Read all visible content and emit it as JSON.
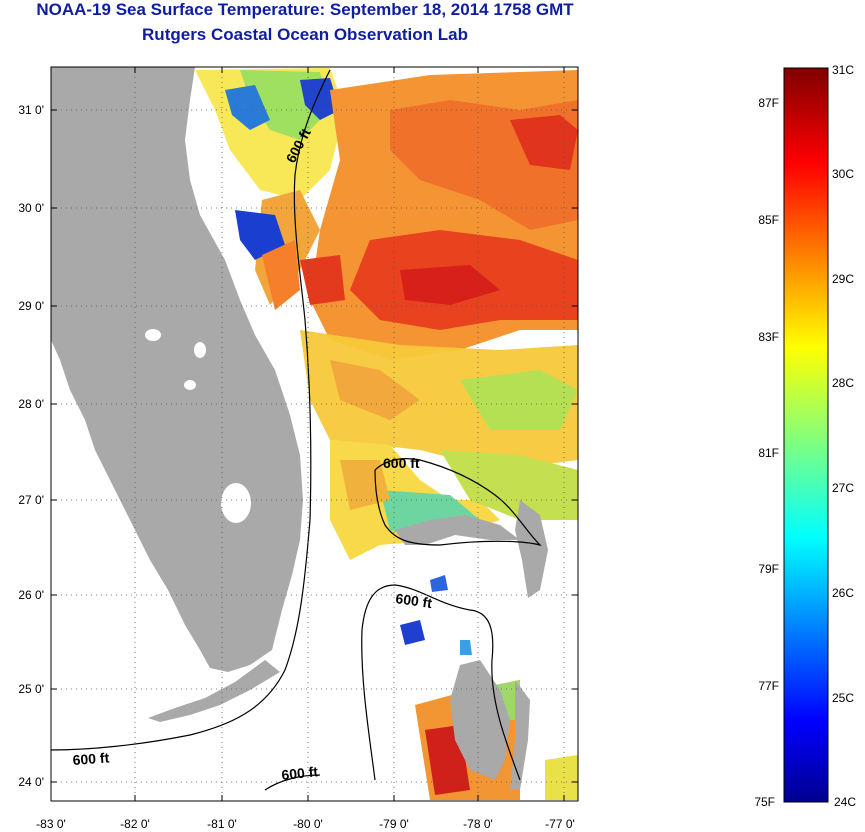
{
  "title": {
    "line1": "NOAA-19 Sea Surface Temperature:  September 18, 2014 1758 GMT",
    "line2": "Rutgers Coastal Ocean Observation Lab"
  },
  "map": {
    "lon_ticks": [
      "-83 0'",
      "-82 0'",
      "-81 0'",
      "-80 0'",
      "-79 0'",
      "-78 0'",
      "-77 0'"
    ],
    "lat_ticks": [
      "31 0'",
      "30 0'",
      "29 0'",
      "28 0'",
      "27 0'",
      "26 0'",
      "25 0'",
      "24 0'"
    ],
    "contour_labels": [
      "600 ft",
      "600 ft",
      "600 ft",
      "600 ft",
      "600 ft"
    ],
    "land_color": "#a9a9a9",
    "ocean_color": "#ffffff"
  },
  "colorbar": {
    "celsius_labels": [
      "31C",
      "30C",
      "29C",
      "28C",
      "27C",
      "26C",
      "25C",
      "24C"
    ],
    "fahrenheit_labels": [
      "87F",
      "85F",
      "83F",
      "81F",
      "79F",
      "77F",
      "75F"
    ],
    "min_c": 24,
    "max_c": 31,
    "colormap": "jet"
  }
}
